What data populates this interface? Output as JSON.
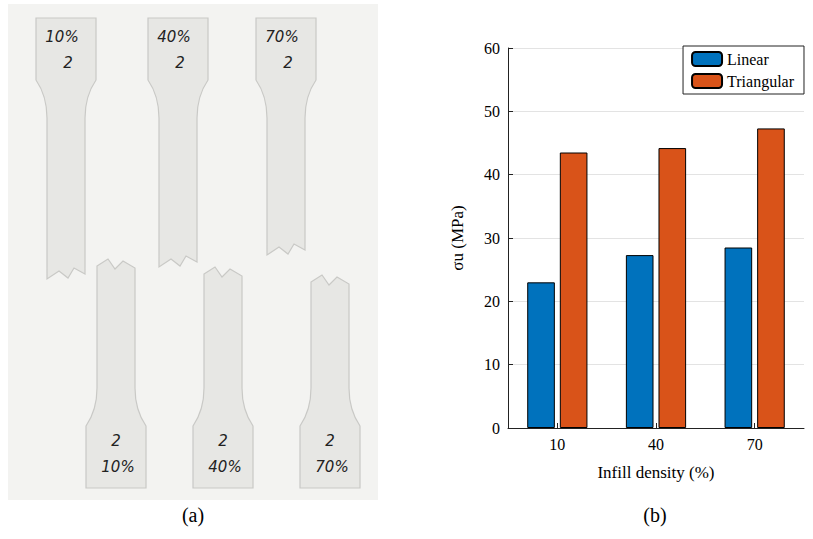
{
  "photo": {
    "caption": "(a)",
    "top_row": [
      {
        "density": "10%",
        "number": "2"
      },
      {
        "density": "40%",
        "number": "2"
      },
      {
        "density": "70%",
        "number": "2"
      }
    ],
    "bottom_row": [
      {
        "density": "10%",
        "number": "2"
      },
      {
        "density": "40%",
        "number": "2"
      },
      {
        "density": "70%",
        "number": "2"
      }
    ]
  },
  "chart_caption": "(b)",
  "chart_data": {
    "type": "bar",
    "x_label": "Infill density (%)",
    "y_label": "σu (MPa)",
    "categories": [
      "10",
      "40",
      "70"
    ],
    "series": [
      {
        "name": "Linear",
        "color": "#0072bd",
        "values": [
          23.0,
          27.3,
          28.5
        ]
      },
      {
        "name": "Triangular",
        "color": "#d95319",
        "values": [
          43.5,
          44.2,
          47.3
        ]
      }
    ],
    "ylim": [
      0,
      60
    ],
    "yticks": [
      0,
      10,
      20,
      30,
      40,
      50,
      60
    ],
    "grid": true,
    "legend": "top-right"
  }
}
